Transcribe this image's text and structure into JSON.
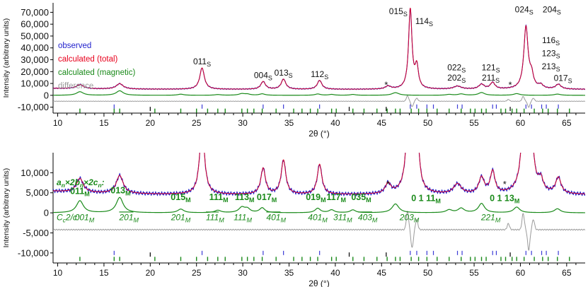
{
  "chart_data": [
    {
      "type": "line",
      "panel": "top",
      "xlabel": "2θ (°)",
      "ylabel": "Intensity (arbitrary units)",
      "xlim": [
        9.5,
        67
      ],
      "ylim": [
        -15000,
        78000
      ],
      "xticks": [
        10,
        15,
        20,
        25,
        30,
        35,
        40,
        45,
        50,
        55,
        60,
        65
      ],
      "xtick_labels": [
        "10",
        "15",
        "20",
        "25",
        "30",
        "35",
        "40",
        "45",
        "50",
        "55",
        "60",
        "65"
      ],
      "yticks": [
        -10000,
        0,
        10000,
        20000,
        30000,
        40000,
        50000,
        60000,
        70000
      ],
      "ytick_labels": [
        "-10,000",
        "0",
        "10,000",
        "20,000",
        "30,000",
        "40,000",
        "50,000",
        "60,000",
        "70,000"
      ],
      "legend": [
        {
          "label": "observed",
          "color": "#1f1fcc"
        },
        {
          "label": "calculated (total)",
          "color": "#e8001c"
        },
        {
          "label": "calculated (magnetic)",
          "color": "#1a8a1a"
        },
        {
          "label": "difference",
          "color": "#9a9a9a"
        }
      ],
      "legend_position": "left",
      "baselines": {
        "total": 5000,
        "magnetic": 0,
        "difference": -5000
      },
      "peaks": [
        {
          "x": 12.4,
          "h": 3500,
          "w": 0.45
        },
        {
          "x": 16.7,
          "h": 4500,
          "w": 0.45
        },
        {
          "x": 25.6,
          "h": 18000,
          "w": 0.3
        },
        {
          "x": 32.2,
          "h": 6500,
          "w": 0.3
        },
        {
          "x": 34.4,
          "h": 8500,
          "w": 0.3
        },
        {
          "x": 38.3,
          "h": 7500,
          "w": 0.3
        },
        {
          "x": 45.7,
          "h": 2500,
          "w": 0.35
        },
        {
          "x": 48.1,
          "h": 67000,
          "w": 0.22
        },
        {
          "x": 48.8,
          "h": 18000,
          "w": 0.22
        },
        {
          "x": 53.2,
          "h": 2500,
          "w": 0.5
        },
        {
          "x": 55.8,
          "h": 4000,
          "w": 0.35
        },
        {
          "x": 57.0,
          "h": 5500,
          "w": 0.3
        },
        {
          "x": 60.6,
          "h": 52000,
          "w": 0.28
        },
        {
          "x": 61.2,
          "h": 10000,
          "w": 0.25
        },
        {
          "x": 62.2,
          "h": 3000,
          "w": 0.3
        },
        {
          "x": 64.1,
          "h": 4000,
          "w": 0.35
        }
      ],
      "magnetic_peaks": [
        {
          "x": 12.4,
          "h": 3000,
          "w": 0.45
        },
        {
          "x": 16.7,
          "h": 3800,
          "w": 0.45
        },
        {
          "x": 23.3,
          "h": 900,
          "w": 0.4
        },
        {
          "x": 27.3,
          "h": 600,
          "w": 0.4
        },
        {
          "x": 29.9,
          "h": 1300,
          "w": 0.4
        },
        {
          "x": 30.5,
          "h": 900,
          "w": 0.35
        },
        {
          "x": 32.1,
          "h": 1200,
          "w": 0.35
        },
        {
          "x": 38.1,
          "h": 1100,
          "w": 0.35
        },
        {
          "x": 39.6,
          "h": 700,
          "w": 0.35
        },
        {
          "x": 41.9,
          "h": 700,
          "w": 0.35
        },
        {
          "x": 46.5,
          "h": 2200,
          "w": 0.45
        },
        {
          "x": 52.3,
          "h": 700,
          "w": 0.4
        },
        {
          "x": 53.6,
          "h": 1100,
          "w": 0.4
        },
        {
          "x": 55.8,
          "h": 2300,
          "w": 0.4
        },
        {
          "x": 59.6,
          "h": 1400,
          "w": 0.4
        },
        {
          "x": 64.0,
          "h": 1000,
          "w": 0.4
        }
      ],
      "difference_wiggles": [
        {
          "x": 47.8,
          "a": 4500
        },
        {
          "x": 48.3,
          "a": -4500
        },
        {
          "x": 48.8,
          "a": 2500
        },
        {
          "x": 58.7,
          "a": 1500
        },
        {
          "x": 60.3,
          "a": 4000
        },
        {
          "x": 60.9,
          "a": -5000
        },
        {
          "x": 61.4,
          "a": 2500
        }
      ],
      "peak_labels": [
        {
          "text": "011",
          "sub": "S",
          "x": 25.6,
          "y": 26000
        },
        {
          "text": "004",
          "sub": "S",
          "x": 32.2,
          "y": 14500
        },
        {
          "text": "013",
          "sub": "S",
          "x": 34.4,
          "y": 16500
        },
        {
          "text": "112",
          "sub": "S",
          "x": 38.3,
          "y": 15500
        },
        {
          "text": "015",
          "sub": "S",
          "x": 46.8,
          "y": 68500
        },
        {
          "text": "114",
          "sub": "S",
          "x": 49.6,
          "y": 60000
        },
        {
          "text": "022",
          "sub": "S",
          "x": 53.1,
          "y": 21000
        },
        {
          "text": "202",
          "sub": "S",
          "x": 53.1,
          "y": 12500
        },
        {
          "text": "121",
          "sub": "S",
          "x": 56.8,
          "y": 21000
        },
        {
          "text": "211",
          "sub": "S",
          "x": 56.8,
          "y": 12500
        },
        {
          "text": "024",
          "sub": "S",
          "x": 60.4,
          "y": 70000
        },
        {
          "text": "204",
          "sub": "S",
          "x": 63.4,
          "y": 70000
        },
        {
          "text": "116",
          "sub": "S",
          "x": 63.3,
          "y": 44000
        },
        {
          "text": "123",
          "sub": "S",
          "x": 63.3,
          "y": 33000
        },
        {
          "text": "213",
          "sub": "S",
          "x": 63.3,
          "y": 22000
        },
        {
          "text": "017",
          "sub": "S",
          "x": 64.6,
          "y": 12000
        }
      ],
      "asterisks": [
        {
          "x": 45.5,
          "y": 9000
        },
        {
          "x": 58.9,
          "y": 9000
        }
      ],
      "tick_rows": {
        "blue_y": -9500,
        "blue": [
          16.1,
          25.6,
          32.2,
          34.4,
          38.3,
          48.1,
          48.8,
          49.9,
          50.6,
          53.2,
          53.7,
          57.0,
          57.4,
          60.6,
          61.2,
          62.3,
          62.8,
          64.1
        ],
        "black_y": -11500,
        "black": [
          20.0,
          41.5,
          45.5,
          58.9
        ],
        "green_y": -13000,
        "green": [
          12.4,
          16.1,
          16.7,
          20.5,
          23.3,
          25.0,
          26.2,
          27.3,
          28.1,
          29.9,
          30.5,
          31.2,
          32.1,
          33.6,
          35.5,
          36.4,
          37.3,
          38.1,
          39.6,
          40.1,
          41.9,
          43.1,
          44.5,
          45.6,
          46.5,
          47.0,
          48.2,
          49.0,
          49.9,
          51.0,
          52.3,
          53.6,
          54.6,
          55.1,
          55.8,
          56.3,
          57.9,
          58.4,
          59.1,
          59.6,
          60.4,
          61.5,
          62.4,
          63.0,
          64.0,
          65.3
        ]
      }
    },
    {
      "type": "line",
      "panel": "bottom",
      "xlabel": "2θ (°)",
      "ylabel": "Intensity (arbitrary units)",
      "xlim": [
        9.5,
        67
      ],
      "ylim": [
        -12500,
        15000
      ],
      "xticks": [
        10,
        15,
        20,
        25,
        30,
        35,
        40,
        45,
        50,
        55,
        60,
        65
      ],
      "xtick_labels": [
        "10",
        "15",
        "20",
        "25",
        "30",
        "35",
        "40",
        "45",
        "50",
        "55",
        "60",
        "65"
      ],
      "yticks": [
        -10000,
        -5000,
        0,
        5000,
        10000
      ],
      "ytick_labels": [
        "-10,000",
        "-5,000",
        "0",
        "5,000",
        "10,000"
      ],
      "baselines": {
        "total": 4500,
        "magnetic": 0,
        "difference": -4200
      },
      "cell_label": {
        "pre": "a",
        "pre_sub": "n",
        "mid1": "×2b",
        "mid1_sub": "n",
        "mid2": "×2c",
        "mid2_sub": "n",
        "post": ":"
      },
      "space_group_label": {
        "pre": "C",
        "pre_sub": "c",
        "post": "2/c:"
      },
      "mag_labels_bold": [
        {
          "text": "011",
          "sub": "M",
          "x": 12.4,
          "y": 4700
        },
        {
          "text": "013",
          "sub": "M",
          "x": 16.8,
          "y": 4900
        },
        {
          "text": "015",
          "sub": "M",
          "x": 23.3,
          "y": 3200
        },
        {
          "text": "111",
          "sub": "M",
          "x": 27.4,
          "y": 3200
        },
        {
          "text": "113",
          "sub": "M",
          "x": 30.2,
          "y": 3200
        },
        {
          "text": "017",
          "sub": "M",
          "x": 32.6,
          "y": 3200
        },
        {
          "text": "019",
          "sub": "M",
          "x": 37.9,
          "y": 3200
        },
        {
          "text": "117",
          "sub": "M",
          "x": 40.1,
          "y": 3200
        },
        {
          "text": "035",
          "sub": "M",
          "x": 42.8,
          "y": 3200
        },
        {
          "text": "0 1 11",
          "sub": "M",
          "x": 49.8,
          "y": 2900
        },
        {
          "text": "0 1 13",
          "sub": "M",
          "x": 58.3,
          "y": 2900
        }
      ],
      "mag_labels_italic": [
        {
          "text": "001",
          "sub": "M",
          "bar": false,
          "x": 12.9,
          "y": -1800
        },
        {
          "text": "201",
          "sub": "M",
          "bar": true,
          "x": 17.7,
          "y": -1800
        },
        {
          "text": "201",
          "sub": "M",
          "bar": false,
          "x": 23.3,
          "y": -1800
        },
        {
          "text": "111",
          "sub": "M",
          "bar": true,
          "x": 27.0,
          "y": -1800
        },
        {
          "text": "111",
          "sub": "M",
          "bar": false,
          "x": 30.0,
          "y": -1800
        },
        {
          "text": "401",
          "sub": "M",
          "bar": true,
          "x": 33.6,
          "y": -1800
        },
        {
          "text": "401",
          "sub": "M",
          "bar": false,
          "x": 38.1,
          "y": -1800
        },
        {
          "text": "311",
          "sub": "M",
          "bar": false,
          "x": 40.8,
          "y": -1800
        },
        {
          "text": "403",
          "sub": "M",
          "bar": true,
          "x": 43.5,
          "y": -1800
        },
        {
          "text": "203",
          "sub": "M",
          "bar": false,
          "x": 48.0,
          "y": -1800
        },
        {
          "text": "221",
          "sub": "M",
          "bar": false,
          "x": 56.8,
          "y": -1800
        }
      ],
      "asterisks": [
        {
          "x": 45.7,
          "y": 7200
        },
        {
          "x": 58.3,
          "y": 7200
        }
      ]
    }
  ]
}
